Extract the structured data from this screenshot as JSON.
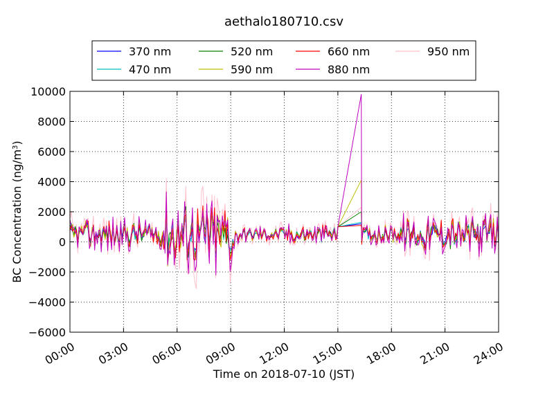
{
  "chart_data": {
    "type": "line",
    "title": "aethalo180710.csv",
    "xlabel": "Time on 2018-07-10 (JST)",
    "ylabel": "BC Concentration (ng/m",
    "ylabel_sup": "3",
    "ylabel_close": ")",
    "xlim": [
      "00:00",
      "24:00"
    ],
    "ylim": [
      -6000,
      10000
    ],
    "x_ticks": [
      "00:00",
      "03:00",
      "06:00",
      "09:00",
      "12:00",
      "15:00",
      "18:00",
      "21:00",
      "24:00"
    ],
    "y_ticks": [
      -6000,
      -4000,
      -2000,
      0,
      2000,
      4000,
      6000,
      8000,
      10000
    ],
    "y_tick_labels": [
      "−6000",
      "−4000",
      "−2000",
      "0",
      "2000",
      "4000",
      "6000",
      "8000",
      "10000"
    ],
    "grid": true,
    "legend_position": "top",
    "series": [
      {
        "name": "370 nm",
        "color": "#0000ff",
        "amp": 0.55,
        "seed": 1
      },
      {
        "name": "470 nm",
        "color": "#00bfbf",
        "amp": 0.6,
        "seed": 2
      },
      {
        "name": "520 nm",
        "color": "#008000",
        "amp": 0.65,
        "seed": 3
      },
      {
        "name": "590 nm",
        "color": "#bfbf00",
        "amp": 0.7,
        "seed": 4
      },
      {
        "name": "660 nm",
        "color": "#ff0000",
        "amp": 0.75,
        "seed": 5
      },
      {
        "name": "880 nm",
        "color": "#bf00bf",
        "amp": 1.0,
        "seed": 6
      },
      {
        "name": "950 nm",
        "color": "#ffc0cb",
        "amp": 1.25,
        "seed": 7
      }
    ],
    "gap": {
      "start": "15:00",
      "end": "16:20"
    },
    "gap_peak_values": {
      "370 nm": 1200,
      "470 nm": 1300,
      "520 nm": 2000,
      "590 nm": 4100,
      "660 nm": 1100,
      "880 nm": 9800,
      "950 nm": 2300
    }
  }
}
